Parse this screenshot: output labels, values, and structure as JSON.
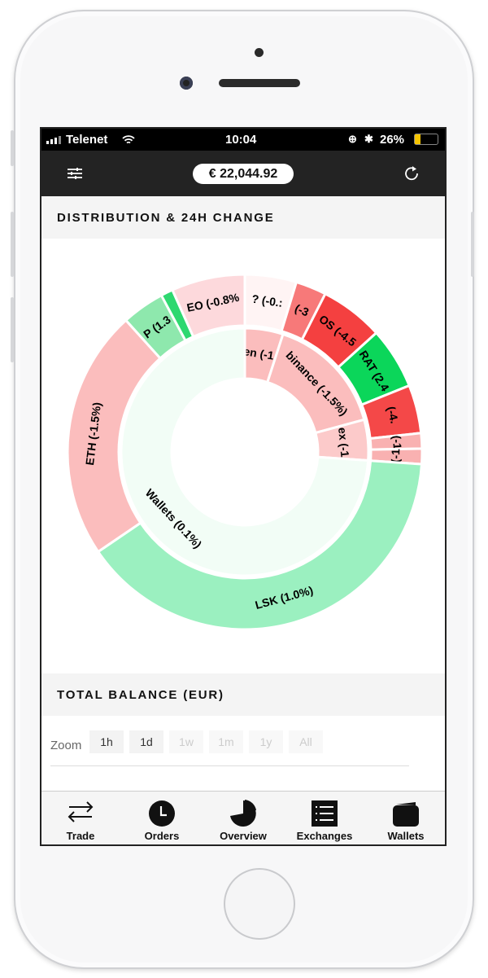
{
  "status": {
    "carrier": "Telenet",
    "time": "10:04",
    "battery": "26%",
    "battery_level": 0.26,
    "battery_color": "#f5c400"
  },
  "header": {
    "balance": "€ 22,044.92",
    "menu_icon": "sliders-icon",
    "refresh_icon": "refresh-icon"
  },
  "distribution": {
    "title": "DISTRIBUTION & 24H CHANGE"
  },
  "chart_data": {
    "type": "sunburst",
    "inner": [
      {
        "label": "en (-1.",
        "share": 5,
        "color": "#fbbdbd"
      },
      {
        "label": "binance (-1.5%)",
        "share": 15.8,
        "color": "#fbbdbd"
      },
      {
        "label": "ex (-1",
        "share": 5.3,
        "color": "#fccaca"
      },
      {
        "label": "Wallets (0.1%)",
        "share": 73.9,
        "color": "#f2fdf6"
      }
    ],
    "outer": [
      {
        "label": "? (-0.:",
        "share": 4.7,
        "color": "#fff4f4"
      },
      {
        "label": "(-3",
        "share": 2.8,
        "color": "#f77979"
      },
      {
        "label": "OS (-4.5",
        "share": 5.8,
        "color": "#f44040"
      },
      {
        "label": "RAT (2.4",
        "share": 5.6,
        "color": "#0bd65a"
      },
      {
        "label": "(-4.",
        "share": 4.4,
        "color": "#f44848"
      },
      {
        "label": "(-1",
        "share": 1.4,
        "color": "#f9b1b1"
      },
      {
        "label": "(-1",
        "share": 1.4,
        "color": "#f9b1b1"
      },
      {
        "label": "LSK (1.0%)",
        "share": 39.4,
        "color": "#9bf0c0"
      },
      {
        "label": "ETH (-1.5%)",
        "share": 22.8,
        "color": "#fbbdbd"
      },
      {
        "label": "P (1.3",
        "share": 3.9,
        "color": "#8ee8ad"
      },
      {
        "label": "",
        "share": 1.1,
        "color": "#2ed870"
      },
      {
        "label": "EO (-0.8%",
        "share": 6.7,
        "color": "#fdd9dc"
      }
    ]
  },
  "balance_section": {
    "title": "TOTAL BALANCE (EUR)",
    "zoom_label": "Zoom",
    "zoom_buttons": [
      {
        "label": "1h",
        "enabled": true
      },
      {
        "label": "1d",
        "enabled": true
      },
      {
        "label": "1w",
        "enabled": false
      },
      {
        "label": "1m",
        "enabled": false
      },
      {
        "label": "1y",
        "enabled": false
      },
      {
        "label": "All",
        "enabled": false
      }
    ]
  },
  "nav": [
    {
      "label": "Trade",
      "icon": "arrows-exchange-icon"
    },
    {
      "label": "Orders",
      "icon": "clock-icon"
    },
    {
      "label": "Overview",
      "icon": "pie-chart-icon"
    },
    {
      "label": "Exchanges",
      "icon": "list-icon"
    },
    {
      "label": "Wallets",
      "icon": "wallet-icon"
    }
  ]
}
